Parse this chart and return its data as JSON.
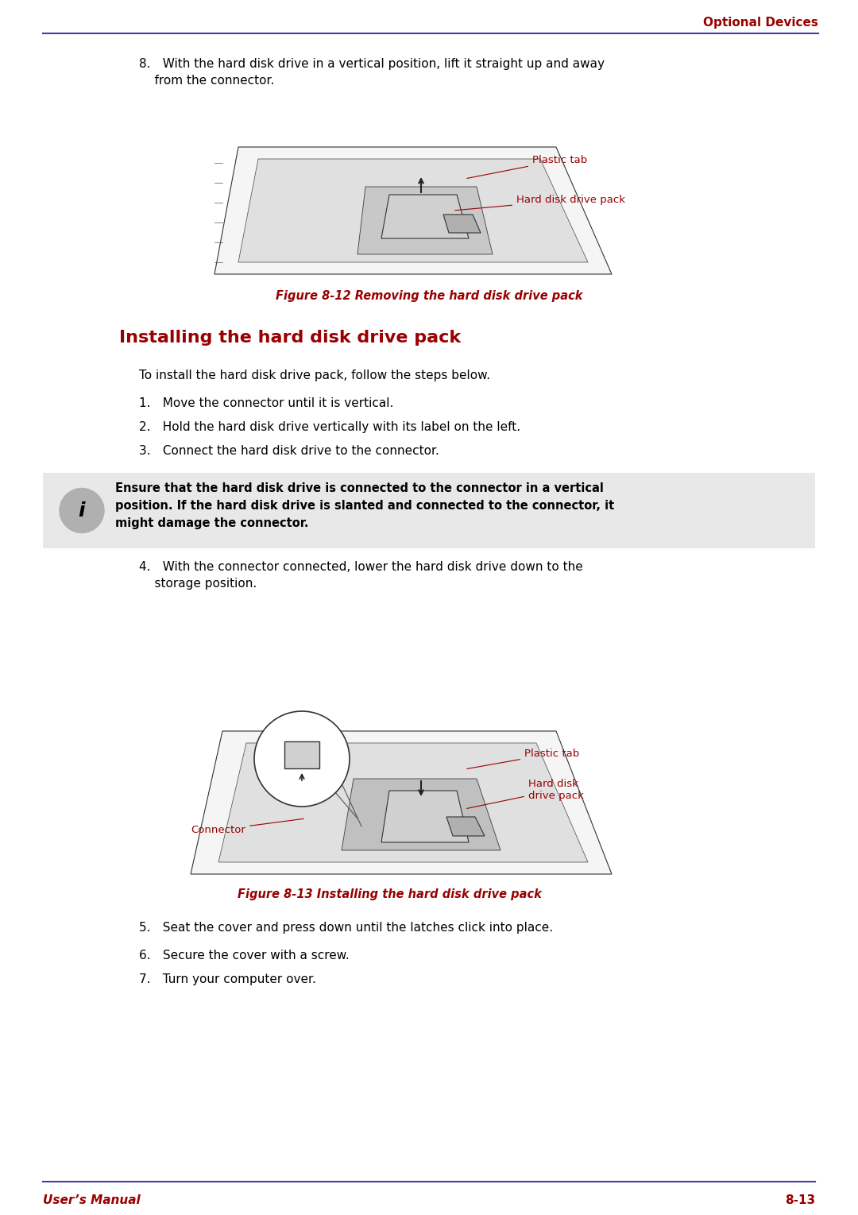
{
  "page_title": "Optional Devices",
  "footer_left": "User’s Manual",
  "footer_right": "8-13",
  "header_line_color": "#4040a0",
  "footer_line_color": "#4040a0",
  "red_color": "#990000",
  "dark_red": "#8B0000",
  "black": "#000000",
  "bg_color": "#ffffff",
  "note_bg": "#e8e8e8",
  "step8_text": "8. With the hard disk drive in a vertical position, lift it straight up and away\n    from the connector.",
  "fig12_caption": "Figure 8-12 Removing the hard disk drive pack",
  "section_title": "Installing the hard disk drive pack",
  "intro_text": "To install the hard disk drive pack, follow the steps below.",
  "step1": "1. Move the connector until it is vertical.",
  "step2": "2. Hold the hard disk drive vertically with its label on the left.",
  "step3": "3. Connect the hard disk drive to the connector.",
  "note_text": "Ensure that the hard disk drive is connected to the connector in a vertical\nposition. If the hard disk drive is slanted and connected to the connector, it\nmight damage the connector.",
  "step4": "4. With the connector connected, lower the hard disk drive down to the\n    storage position.",
  "fig13_caption": "Figure 8-13 Installing the hard disk drive pack",
  "step5": "5. Seat the cover and press down until the latches click into place.",
  "step6": "6. Secure the cover with a screw.",
  "step7": "7. Turn your computer over.",
  "label_plastic_tab_top": "Plastic tab",
  "label_hdd_pack_top": "Hard disk drive pack",
  "label_plastic_tab_bot": "Plastic tab",
  "label_hdd_pack_bot": "Hard disk\ndrive pack",
  "label_connector_bot": "Connector"
}
